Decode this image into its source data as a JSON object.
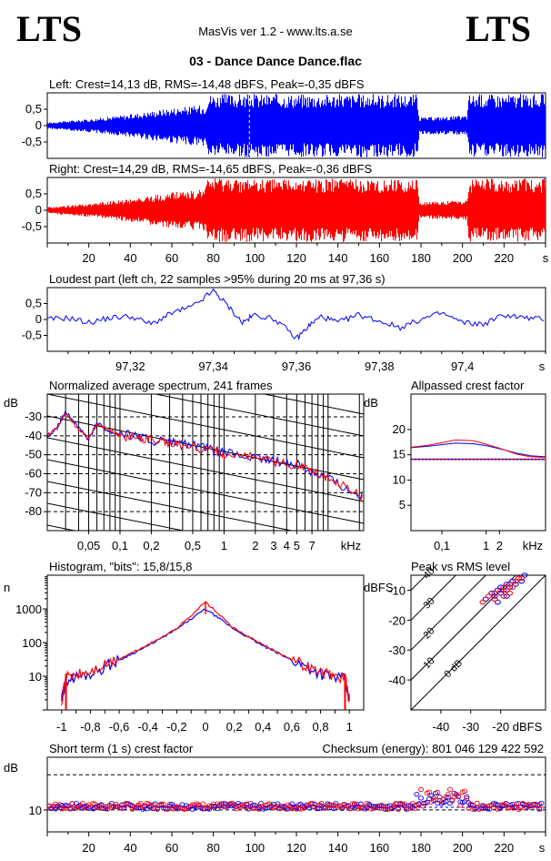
{
  "header": {
    "logo_left": "LTS",
    "logo_right": "LTS",
    "app_title": "MasVis ver 1.2 - www.lts.a.se",
    "file_title": "03 - Dance Dance Dance.flac"
  },
  "colors": {
    "left": "#0000ff",
    "right": "#ff0000",
    "grid": "#000000",
    "background": "#ffffff"
  },
  "chart_data": [
    {
      "id": "left-waveform",
      "type": "area",
      "title": "Left: Crest=14,13 dB, RMS=-14,48 dBFS, Peak=-0,35 dBFS",
      "ylabel": "",
      "ylim": [
        -1,
        1
      ],
      "yticks": [
        "0,5",
        "0",
        "-0,5"
      ],
      "xlim": [
        0,
        240
      ],
      "series": [
        {
          "x": [
            0,
            10,
            20,
            30,
            40,
            50,
            60,
            70,
            76,
            77,
            100,
            150,
            178,
            179,
            200,
            202,
            203,
            230,
            240
          ],
          "envelope": [
            0.1,
            0.15,
            0.2,
            0.28,
            0.35,
            0.45,
            0.55,
            0.6,
            0.65,
            0.97,
            0.97,
            0.97,
            0.97,
            0.25,
            0.3,
            0.32,
            0.97,
            0.97,
            0.97
          ]
        }
      ]
    },
    {
      "id": "right-waveform",
      "type": "area",
      "title": "Right: Crest=14,29 dB, RMS=-14,65 dBFS, Peak=-0,36 dBFS",
      "ylabel": "",
      "ylim": [
        -1,
        1
      ],
      "yticks": [
        "0,5",
        "0",
        "-0,5"
      ],
      "xticks": [
        "20",
        "40",
        "60",
        "80",
        "100",
        "120",
        "140",
        "160",
        "180",
        "200",
        "220",
        "s"
      ],
      "xlim": [
        0,
        240
      ],
      "series": [
        {
          "x": [
            0,
            10,
            20,
            30,
            40,
            50,
            60,
            70,
            76,
            77,
            100,
            150,
            178,
            179,
            200,
            202,
            203,
            230,
            240
          ],
          "envelope": [
            0.1,
            0.15,
            0.2,
            0.28,
            0.35,
            0.45,
            0.55,
            0.6,
            0.65,
            0.97,
            0.97,
            0.97,
            0.97,
            0.25,
            0.3,
            0.32,
            0.97,
            0.97,
            0.97
          ]
        }
      ]
    },
    {
      "id": "loudest-part",
      "type": "line",
      "title": "Loudest part (left  ch, 22 samples >95% during 20 ms at 97,36 s)",
      "ylim": [
        -1,
        1
      ],
      "yticks": [
        "0,5",
        "0",
        "-0,5"
      ],
      "xticks": [
        "97,32",
        "97,34",
        "97,36",
        "97,38",
        "97,4",
        "s"
      ],
      "xlim": [
        97.3,
        97.42
      ],
      "series": [
        {
          "x": [
            97.3,
            97.305,
            97.31,
            97.315,
            97.32,
            97.325,
            97.33,
            97.335,
            97.34,
            97.343,
            97.347,
            97.35,
            97.355,
            97.36,
            97.363,
            97.366,
            97.37,
            97.375,
            97.38,
            97.385,
            97.39,
            97.395,
            97.4,
            97.405,
            97.41,
            97.415,
            97.42
          ],
          "y": [
            0.0,
            0.05,
            -0.1,
            0.05,
            0.1,
            -0.15,
            0.2,
            0.4,
            0.9,
            0.5,
            -0.1,
            0.15,
            0.0,
            -0.6,
            -0.2,
            0.1,
            -0.1,
            0.15,
            -0.05,
            -0.25,
            0.0,
            0.2,
            -0.1,
            -0.15,
            0.15,
            0.05,
            0.0
          ]
        }
      ]
    },
    {
      "id": "spectrum",
      "type": "line",
      "title": "Normalized average spectrum, 241 frames",
      "ylabel": "dB",
      "xlabel": "kHz",
      "yticks": [
        "-30",
        "-40",
        "-50",
        "-60",
        "-70",
        "-80"
      ],
      "xticks": [
        "0,05",
        "0,1",
        "0,2",
        "0,5",
        "1",
        "2",
        "3",
        "4",
        "5",
        "7"
      ],
      "ylim": [
        -90,
        -18
      ],
      "xlim_khz": [
        0.02,
        22
      ],
      "series": [
        {
          "name": "left",
          "x_khz": [
            0.02,
            0.025,
            0.03,
            0.04,
            0.05,
            0.06,
            0.08,
            0.1,
            0.15,
            0.2,
            0.3,
            0.5,
            0.8,
            1,
            2,
            3,
            5,
            7,
            10,
            15,
            22
          ],
          "y": [
            -41,
            -35,
            -27,
            -36,
            -42,
            -33,
            -38,
            -39,
            -40,
            -43,
            -43,
            -45,
            -48,
            -49,
            -52,
            -53,
            -55,
            -59,
            -62,
            -68,
            -72
          ]
        },
        {
          "name": "right",
          "x_khz": [
            0.02,
            0.025,
            0.03,
            0.04,
            0.05,
            0.06,
            0.08,
            0.1,
            0.15,
            0.2,
            0.3,
            0.5,
            0.8,
            1,
            2,
            3,
            5,
            7,
            10,
            15,
            22
          ],
          "y": [
            -40,
            -36,
            -28,
            -37,
            -41,
            -34,
            -37,
            -40,
            -41,
            -42,
            -44,
            -46,
            -48,
            -50,
            -51,
            -54,
            -56,
            -58,
            -63,
            -67,
            -73
          ]
        }
      ]
    },
    {
      "id": "allpassed-crest",
      "type": "line",
      "title": "Allpassed crest factor",
      "ylabel": "dB",
      "xlabel": "kHz",
      "yticks": [
        "20",
        "15",
        "10",
        "5"
      ],
      "xticks": [
        "0,1",
        "1",
        "2"
      ],
      "ylim": [
        0,
        27
      ],
      "xlim_khz": [
        0.02,
        22
      ],
      "reference_db": 14.1,
      "series": [
        {
          "name": "left",
          "x_khz": [
            0.02,
            0.05,
            0.1,
            0.2,
            0.5,
            1,
            2,
            5,
            10,
            22
          ],
          "y": [
            16.4,
            16.7,
            17.0,
            17.3,
            17.2,
            16.8,
            16.2,
            15.3,
            14.8,
            14.6
          ]
        },
        {
          "name": "right",
          "x_khz": [
            0.02,
            0.05,
            0.1,
            0.2,
            0.5,
            1,
            2,
            5,
            10,
            22
          ],
          "y": [
            16.5,
            16.9,
            17.4,
            17.9,
            17.8,
            17.1,
            16.3,
            15.1,
            14.6,
            14.5
          ]
        }
      ]
    },
    {
      "id": "histogram",
      "type": "line",
      "title": "Histogram, \"bits\": 15,8/15,8",
      "ylabel": "n",
      "yticks": [
        "1000",
        "100",
        "10"
      ],
      "xticks": [
        "-1",
        "-0,8",
        "-0,6",
        "-0,4",
        "-0,2",
        "0",
        "0,2",
        "0,4",
        "0,6",
        "0,8",
        "1"
      ],
      "xlim": [
        -1.1,
        1.1
      ],
      "ylog": true,
      "series": [
        {
          "name": "left",
          "x": [
            -1,
            -0.97,
            -0.8,
            -0.6,
            -0.4,
            -0.2,
            0,
            0.2,
            0.4,
            0.6,
            0.8,
            0.97,
            1
          ],
          "y": [
            2,
            8,
            12,
            30,
            80,
            250,
            1000,
            250,
            80,
            30,
            12,
            8,
            2
          ]
        },
        {
          "name": "right",
          "x": [
            -1,
            -0.97,
            -0.8,
            -0.6,
            -0.4,
            -0.2,
            0,
            0.2,
            0.4,
            0.6,
            0.8,
            0.97,
            1
          ],
          "y": [
            2,
            9,
            13,
            32,
            85,
            260,
            1600,
            260,
            85,
            32,
            13,
            9,
            2
          ]
        }
      ]
    },
    {
      "id": "peak-vs-rms",
      "type": "scatter",
      "title": "Peak vs RMS level",
      "ylabel": "dBFS",
      "xlabel": "dBFS",
      "yticks": [
        "-10",
        "-20",
        "-30",
        "-40"
      ],
      "xticks": [
        "-40",
        "-30",
        "-20"
      ],
      "diagonal_labels": [
        "40",
        "30",
        "20",
        "10",
        "0 dB"
      ],
      "xlim": [
        -50,
        -5
      ],
      "ylim": [
        -50,
        -5
      ],
      "series": [
        {
          "name": "left",
          "x": [
            -25,
            -23,
            -22,
            -21,
            -20,
            -20,
            -19,
            -18,
            -17,
            -16,
            -15,
            -14,
            -13,
            -12,
            -18,
            -21
          ],
          "y": [
            -13,
            -11,
            -12,
            -10,
            -9,
            -11,
            -10,
            -8,
            -9,
            -7,
            -8,
            -6,
            -7,
            -5,
            -12,
            -14
          ]
        },
        {
          "name": "right",
          "x": [
            -26,
            -24,
            -22,
            -20,
            -19,
            -18,
            -17,
            -16,
            -15,
            -14,
            -13,
            -17,
            -19,
            -22
          ],
          "y": [
            -14,
            -12,
            -11,
            -10,
            -9,
            -10,
            -8,
            -9,
            -7,
            -6,
            -6,
            -11,
            -12,
            -13
          ]
        }
      ]
    },
    {
      "id": "short-term-crest",
      "type": "scatter",
      "title": "Short term (1 s) crest factor",
      "ylabel": "dB",
      "yticks": [
        "10"
      ],
      "xticks": [
        "20",
        "40",
        "60",
        "80",
        "100",
        "120",
        "140",
        "160",
        "180",
        "200",
        "220",
        "s"
      ],
      "xlim": [
        0,
        240
      ],
      "ylim": [
        5,
        22
      ],
      "reference_lines_db": [
        10,
        18
      ],
      "checksum_label": "Checksum (energy):",
      "checksum_value": "801 046 129 422 592"
    }
  ]
}
